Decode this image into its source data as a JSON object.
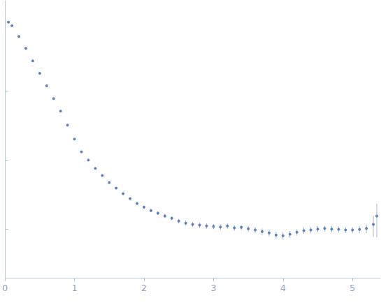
{
  "chart_data": {
    "type": "scatter",
    "color": "#3a66b5",
    "marker": "circle",
    "log": "y",
    "grid": false,
    "tick_labels": "x",
    "xlim": [
      0,
      5.4
    ],
    "xticks": [
      0,
      1,
      2,
      3,
      4,
      5
    ],
    "ylim": [
      0.0002,
      2
    ],
    "yticks": [
      0.001,
      0.01,
      0.1,
      1
    ],
    "x": [
      0.05,
      0.1,
      0.2,
      0.3,
      0.4,
      0.5,
      0.6,
      0.7,
      0.8,
      0.9,
      1.0,
      1.1,
      1.2,
      1.3,
      1.4,
      1.5,
      1.6,
      1.7,
      1.8,
      1.9,
      2.0,
      2.1,
      2.2,
      2.3,
      2.4,
      2.5,
      2.6,
      2.7,
      2.8,
      2.9,
      3.0,
      3.1,
      3.2,
      3.3,
      3.4,
      3.5,
      3.6,
      3.7,
      3.8,
      3.9,
      4.0,
      4.1,
      4.2,
      4.3,
      4.4,
      4.5,
      4.6,
      4.7,
      4.8,
      4.9,
      5.0,
      5.1,
      5.2,
      5.3,
      5.35
    ],
    "values": [
      0.98,
      0.87,
      0.61,
      0.41,
      0.27,
      0.179,
      0.118,
      0.0774,
      0.0509,
      0.032,
      0.0201,
      0.0132,
      0.01,
      0.0076,
      0.006,
      0.00475,
      0.00394,
      0.00327,
      0.00278,
      0.00236,
      0.0021,
      0.00187,
      0.00171,
      0.00156,
      0.00145,
      0.00132,
      0.00123,
      0.00118,
      0.00115,
      0.00112,
      0.0011,
      0.00108,
      0.00112,
      0.00105,
      0.00107,
      0.00102,
      0.00098,
      0.00093,
      0.00089,
      0.00083,
      0.00081,
      0.00085,
      0.00091,
      0.00096,
      0.00098,
      0.00101,
      0.00103,
      0.00101,
      0.001,
      0.00098,
      0.00098,
      0.001,
      0.00103,
      0.00118,
      0.00156
    ],
    "errors": [
      0.005,
      0.004,
      0.003,
      0.002,
      0.0014,
      0.0009,
      0.0006,
      0.0004,
      0.0003,
      0.0002,
      0.00015,
      0.0001,
      0.0001,
      0.0001,
      0.0001,
      0.0001,
      0.0001,
      0.0001,
      0.0001,
      0.0001,
      0.0001,
      0.0001,
      0.0001,
      0.0001,
      0.0001,
      0.0001,
      0.0001,
      0.0001,
      0.0001,
      0.0001,
      0.0001,
      0.0001,
      0.0001,
      0.0001,
      0.0001,
      0.0001,
      0.0001,
      0.0001,
      0.0001,
      0.0001,
      0.0001,
      0.0001,
      0.0001,
      0.0001,
      0.0001,
      0.0001,
      0.0001,
      0.0001,
      0.0001,
      0.0001,
      0.0001,
      0.00012,
      0.00015,
      0.0004,
      0.0008
    ]
  }
}
